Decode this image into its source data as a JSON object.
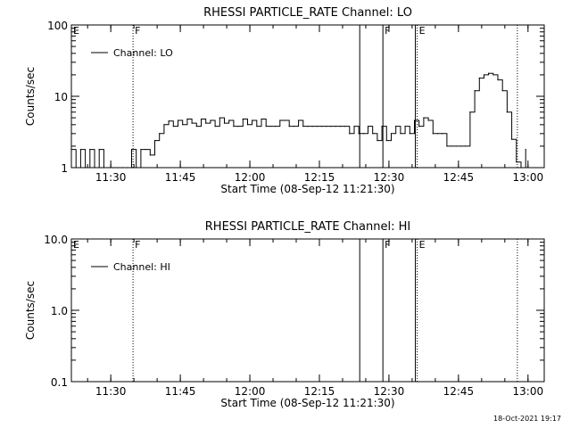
{
  "chart_data": [
    {
      "type": "line",
      "title": "RHESSI PARTICLE_RATE Channel: LO",
      "xlabel": "Start Time (08-Sep-12 11:21:30)",
      "ylabel": "Counts/sec",
      "xlim_minutes_from_start": [
        0,
        102
      ],
      "yscale": "log",
      "ylim": [
        1,
        100
      ],
      "yticks": [
        1,
        10,
        100
      ],
      "ytick_labels": [
        "1",
        "10",
        "100"
      ],
      "xticks_minutes": [
        8.5,
        23.5,
        38.5,
        53.5,
        68.5,
        83.5,
        98.5
      ],
      "xtick_labels": [
        "11:30",
        "11:45",
        "12:00",
        "12:15",
        "12:30",
        "12:45",
        "13:00"
      ],
      "legend": "Channel: LO",
      "legend_position": "top-left",
      "series": [
        {
          "name": "Channel: LO",
          "x": [
            0,
            1,
            2,
            3,
            4,
            5,
            6,
            7,
            8,
            9,
            10,
            11,
            12,
            13,
            14,
            15,
            16,
            17,
            18,
            19,
            20,
            21,
            22,
            23,
            24,
            25,
            26,
            27,
            28,
            29,
            30,
            31,
            32,
            33,
            34,
            35,
            36,
            37,
            38,
            39,
            40,
            41,
            42,
            43,
            44,
            45,
            46,
            47,
            48,
            49,
            50,
            51,
            52,
            53,
            54,
            55,
            56,
            57,
            58,
            59,
            60,
            61,
            62,
            63,
            64,
            65,
            66,
            67,
            68,
            69,
            70,
            71,
            72,
            73,
            74,
            75,
            76,
            77,
            78,
            79,
            80,
            81,
            82,
            83,
            84,
            85,
            86,
            87,
            88,
            89,
            90,
            91,
            92,
            93,
            94,
            95,
            96,
            97,
            98
          ],
          "y": [
            1.8,
            1.0,
            1.8,
            1.0,
            1.8,
            1.0,
            1.8,
            1.0,
            1.0,
            1.0,
            1.0,
            1.0,
            1.0,
            1.8,
            1.0,
            1.8,
            1.8,
            1.5,
            2.4,
            3.0,
            4.0,
            4.5,
            3.8,
            4.6,
            4.0,
            4.8,
            4.2,
            3.8,
            4.8,
            4.2,
            4.6,
            3.8,
            5.0,
            4.2,
            4.6,
            3.8,
            3.8,
            4.8,
            4.0,
            4.6,
            3.8,
            4.8,
            3.8,
            3.8,
            3.8,
            4.6,
            4.6,
            3.8,
            3.8,
            4.6,
            3.8,
            3.8,
            3.8,
            3.8,
            3.8,
            3.8,
            3.8,
            3.8,
            3.8,
            3.8,
            3.0,
            3.8,
            3.0,
            3.0,
            3.8,
            3.0,
            2.4,
            3.8,
            2.4,
            3.0,
            3.8,
            3.0,
            3.8,
            3.0,
            4.6,
            3.8,
            5.0,
            4.6,
            3.0,
            3.0,
            3.0,
            2.0,
            2.0,
            2.0,
            2.0,
            2.0,
            6.0,
            12.0,
            18.0,
            20.0,
            21.0,
            20.0,
            17.0,
            12.0,
            6.0,
            2.5,
            1.2,
            1.0,
            1.8
          ]
        }
      ],
      "event_lines": [
        {
          "minute": 13.3,
          "style": "dotted",
          "flag": "F"
        },
        {
          "minute": 62.2,
          "style": "solid",
          "flag": ""
        },
        {
          "minute": 67.2,
          "style": "solid",
          "flag": "F"
        },
        {
          "minute": 74.2,
          "style": "solid",
          "flag": ""
        },
        {
          "minute": 74.6,
          "style": "dotted",
          "flag": "E"
        },
        {
          "minute": 96.2,
          "style": "dotted",
          "flag": ""
        }
      ],
      "corner_flag": "E"
    },
    {
      "type": "line",
      "title": "RHESSI PARTICLE_RATE Channel: HI",
      "xlabel": "Start Time (08-Sep-12 11:21:30)",
      "ylabel": "Counts/sec",
      "xlim_minutes_from_start": [
        0,
        102
      ],
      "yscale": "log",
      "ylim": [
        0.1,
        10
      ],
      "yticks": [
        0.1,
        1,
        10
      ],
      "ytick_labels": [
        "0.1",
        "1.0",
        "10.0"
      ],
      "xticks_minutes": [
        8.5,
        23.5,
        38.5,
        53.5,
        68.5,
        83.5,
        98.5
      ],
      "xtick_labels": [
        "11:30",
        "11:45",
        "12:00",
        "12:15",
        "12:30",
        "12:45",
        "13:00"
      ],
      "legend": "Channel: HI",
      "legend_position": "top-left",
      "series": [
        {
          "name": "Channel: HI",
          "x": [],
          "y": []
        }
      ],
      "event_lines": [
        {
          "minute": 13.3,
          "style": "dotted",
          "flag": "F"
        },
        {
          "minute": 62.2,
          "style": "solid",
          "flag": ""
        },
        {
          "minute": 67.2,
          "style": "solid",
          "flag": "F"
        },
        {
          "minute": 74.2,
          "style": "solid",
          "flag": ""
        },
        {
          "minute": 74.6,
          "style": "dotted",
          "flag": "E"
        },
        {
          "minute": 96.2,
          "style": "dotted",
          "flag": ""
        }
      ],
      "corner_flag": "E"
    }
  ],
  "footer": {
    "timestamp": "18-Oct-2021 19:17"
  }
}
